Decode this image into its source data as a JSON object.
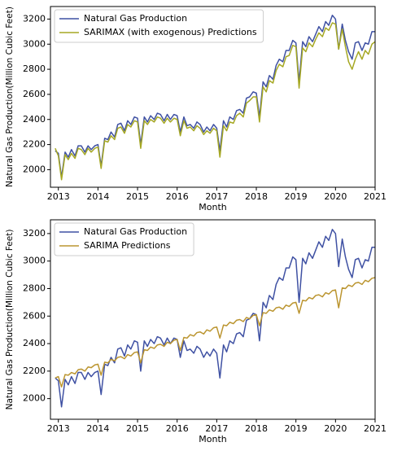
{
  "chart_data": [
    {
      "type": "line",
      "xlabel": "Month",
      "ylabel": "Natural Gas Production(Million Cubic Feet)",
      "legend": "upper left",
      "xlim": [
        2012.8,
        2021.0
      ],
      "ylim": [
        1860,
        3300
      ],
      "xticks": [
        2013,
        2014,
        2015,
        2016,
        2017,
        2018,
        2019,
        2020,
        2021
      ],
      "yticks": [
        2000,
        2200,
        2400,
        2600,
        2800,
        3000,
        3200
      ],
      "x": [
        2012.92,
        2013.0,
        2013.08,
        2013.17,
        2013.25,
        2013.33,
        2013.42,
        2013.5,
        2013.58,
        2013.67,
        2013.75,
        2013.83,
        2013.92,
        2014.0,
        2014.08,
        2014.17,
        2014.25,
        2014.33,
        2014.42,
        2014.5,
        2014.58,
        2014.67,
        2014.75,
        2014.83,
        2014.92,
        2015.0,
        2015.08,
        2015.17,
        2015.25,
        2015.33,
        2015.42,
        2015.5,
        2015.58,
        2015.67,
        2015.75,
        2015.83,
        2015.92,
        2016.0,
        2016.08,
        2016.17,
        2016.25,
        2016.33,
        2016.42,
        2016.5,
        2016.58,
        2016.67,
        2016.75,
        2016.83,
        2016.92,
        2017.0,
        2017.08,
        2017.17,
        2017.25,
        2017.33,
        2017.42,
        2017.5,
        2017.58,
        2017.67,
        2017.75,
        2017.83,
        2017.92,
        2018.0,
        2018.08,
        2018.17,
        2018.25,
        2018.33,
        2018.42,
        2018.5,
        2018.58,
        2018.67,
        2018.75,
        2018.83,
        2018.92,
        2019.0,
        2019.08,
        2019.17,
        2019.25,
        2019.33,
        2019.42,
        2019.5,
        2019.58,
        2019.67,
        2019.75,
        2019.83,
        2019.92,
        2020.0,
        2020.08,
        2020.17,
        2020.25,
        2020.33,
        2020.42,
        2020.5,
        2020.58,
        2020.67,
        2020.75,
        2020.83,
        2020.92,
        2021.0
      ],
      "series": [
        {
          "name": "Natural Gas Production",
          "color": "#3f51a3",
          "values": [
            2150,
            2130,
            1940,
            2140,
            2100,
            2160,
            2110,
            2190,
            2190,
            2140,
            2190,
            2160,
            2190,
            2200,
            2030,
            2250,
            2240,
            2300,
            2260,
            2360,
            2370,
            2310,
            2390,
            2360,
            2420,
            2410,
            2200,
            2420,
            2380,
            2430,
            2400,
            2450,
            2440,
            2390,
            2440,
            2400,
            2440,
            2430,
            2300,
            2420,
            2350,
            2360,
            2330,
            2380,
            2360,
            2300,
            2340,
            2310,
            2360,
            2330,
            2150,
            2390,
            2340,
            2420,
            2400,
            2470,
            2480,
            2450,
            2570,
            2580,
            2620,
            2610,
            2420,
            2700,
            2660,
            2750,
            2720,
            2830,
            2880,
            2860,
            2950,
            2950,
            3030,
            3010,
            2700,
            3020,
            2980,
            3060,
            3020,
            3080,
            3140,
            3100,
            3180,
            3150,
            3230,
            3200,
            2960,
            3160,
            3030,
            2940,
            2880,
            3010,
            3020,
            2950,
            3010,
            3000,
            3100,
            3100
          ]
        },
        {
          "name": "SARIMAX (with exogenous) Predictions",
          "color": "#a6a823",
          "values": [
            2170,
            2110,
            1920,
            2120,
            2080,
            2130,
            2090,
            2170,
            2160,
            2120,
            2170,
            2140,
            2170,
            2180,
            2010,
            2230,
            2220,
            2270,
            2240,
            2330,
            2340,
            2290,
            2360,
            2340,
            2390,
            2380,
            2170,
            2390,
            2360,
            2400,
            2380,
            2420,
            2410,
            2370,
            2410,
            2380,
            2410,
            2400,
            2270,
            2390,
            2330,
            2340,
            2310,
            2350,
            2330,
            2280,
            2310,
            2290,
            2330,
            2310,
            2100,
            2350,
            2310,
            2380,
            2370,
            2430,
            2450,
            2420,
            2530,
            2550,
            2580,
            2580,
            2380,
            2660,
            2620,
            2710,
            2690,
            2790,
            2840,
            2820,
            2900,
            2910,
            2990,
            2980,
            2650,
            2970,
            2940,
            3010,
            2980,
            3040,
            3090,
            3060,
            3130,
            3110,
            3170,
            3160,
            2960,
            3120,
            2980,
            2860,
            2800,
            2880,
            2940,
            2880,
            2950,
            2920,
            3000,
            3020
          ]
        }
      ]
    },
    {
      "type": "line",
      "xlabel": "Month",
      "ylabel": "Natural Gas Production(Million Cubic Feet)",
      "legend": "upper left",
      "xlim": [
        2012.8,
        2021.0
      ],
      "ylim": [
        1850,
        3300
      ],
      "xticks": [
        2013,
        2014,
        2015,
        2016,
        2017,
        2018,
        2019,
        2020,
        2021
      ],
      "yticks": [
        2000,
        2200,
        2400,
        2600,
        2800,
        3000,
        3200
      ],
      "x": [
        2012.92,
        2013.0,
        2013.08,
        2013.17,
        2013.25,
        2013.33,
        2013.42,
        2013.5,
        2013.58,
        2013.67,
        2013.75,
        2013.83,
        2013.92,
        2014.0,
        2014.08,
        2014.17,
        2014.25,
        2014.33,
        2014.42,
        2014.5,
        2014.58,
        2014.67,
        2014.75,
        2014.83,
        2014.92,
        2015.0,
        2015.08,
        2015.17,
        2015.25,
        2015.33,
        2015.42,
        2015.5,
        2015.58,
        2015.67,
        2015.75,
        2015.83,
        2015.92,
        2016.0,
        2016.08,
        2016.17,
        2016.25,
        2016.33,
        2016.42,
        2016.5,
        2016.58,
        2016.67,
        2016.75,
        2016.83,
        2016.92,
        2017.0,
        2017.08,
        2017.17,
        2017.25,
        2017.33,
        2017.42,
        2017.5,
        2017.58,
        2017.67,
        2017.75,
        2017.83,
        2017.92,
        2018.0,
        2018.08,
        2018.17,
        2018.25,
        2018.33,
        2018.42,
        2018.5,
        2018.58,
        2018.67,
        2018.75,
        2018.83,
        2018.92,
        2019.0,
        2019.08,
        2019.17,
        2019.25,
        2019.33,
        2019.42,
        2019.5,
        2019.58,
        2019.67,
        2019.75,
        2019.83,
        2019.92,
        2020.0,
        2020.08,
        2020.17,
        2020.25,
        2020.33,
        2020.42,
        2020.5,
        2020.58,
        2020.67,
        2020.75,
        2020.83,
        2020.92,
        2021.0
      ],
      "series": [
        {
          "name": "Natural Gas Production",
          "color": "#3f51a3",
          "values": [
            2150,
            2130,
            1940,
            2140,
            2100,
            2160,
            2110,
            2190,
            2190,
            2140,
            2190,
            2160,
            2190,
            2200,
            2030,
            2250,
            2240,
            2300,
            2260,
            2360,
            2370,
            2310,
            2390,
            2360,
            2420,
            2410,
            2200,
            2420,
            2380,
            2430,
            2400,
            2450,
            2440,
            2390,
            2440,
            2400,
            2440,
            2430,
            2300,
            2420,
            2350,
            2360,
            2330,
            2380,
            2360,
            2300,
            2340,
            2310,
            2360,
            2330,
            2150,
            2390,
            2340,
            2420,
            2400,
            2470,
            2480,
            2450,
            2570,
            2580,
            2620,
            2610,
            2420,
            2700,
            2660,
            2750,
            2720,
            2830,
            2880,
            2860,
            2950,
            2950,
            3030,
            3010,
            2700,
            3020,
            2980,
            3060,
            3020,
            3080,
            3140,
            3100,
            3180,
            3150,
            3230,
            3200,
            2960,
            3160,
            3030,
            2940,
            2880,
            3010,
            3020,
            2950,
            3010,
            3000,
            3100,
            3100
          ]
        },
        {
          "name": "SARIMA Predictions",
          "color": "#bb9530",
          "values": [
            2150,
            2160,
            2085,
            2175,
            2170,
            2190,
            2180,
            2210,
            2215,
            2200,
            2230,
            2225,
            2245,
            2250,
            2170,
            2265,
            2260,
            2285,
            2275,
            2300,
            2305,
            2290,
            2320,
            2310,
            2335,
            2340,
            2260,
            2355,
            2350,
            2375,
            2365,
            2390,
            2395,
            2380,
            2410,
            2400,
            2425,
            2430,
            2350,
            2445,
            2440,
            2465,
            2455,
            2480,
            2485,
            2470,
            2500,
            2490,
            2515,
            2520,
            2440,
            2535,
            2530,
            2555,
            2545,
            2570,
            2575,
            2560,
            2590,
            2580,
            2605,
            2610,
            2530,
            2625,
            2620,
            2645,
            2635,
            2660,
            2665,
            2650,
            2680,
            2670,
            2695,
            2700,
            2620,
            2715,
            2710,
            2735,
            2725,
            2750,
            2755,
            2740,
            2770,
            2760,
            2785,
            2790,
            2660,
            2805,
            2800,
            2825,
            2815,
            2840,
            2845,
            2830,
            2860,
            2850,
            2875,
            2880
          ]
        }
      ]
    }
  ]
}
